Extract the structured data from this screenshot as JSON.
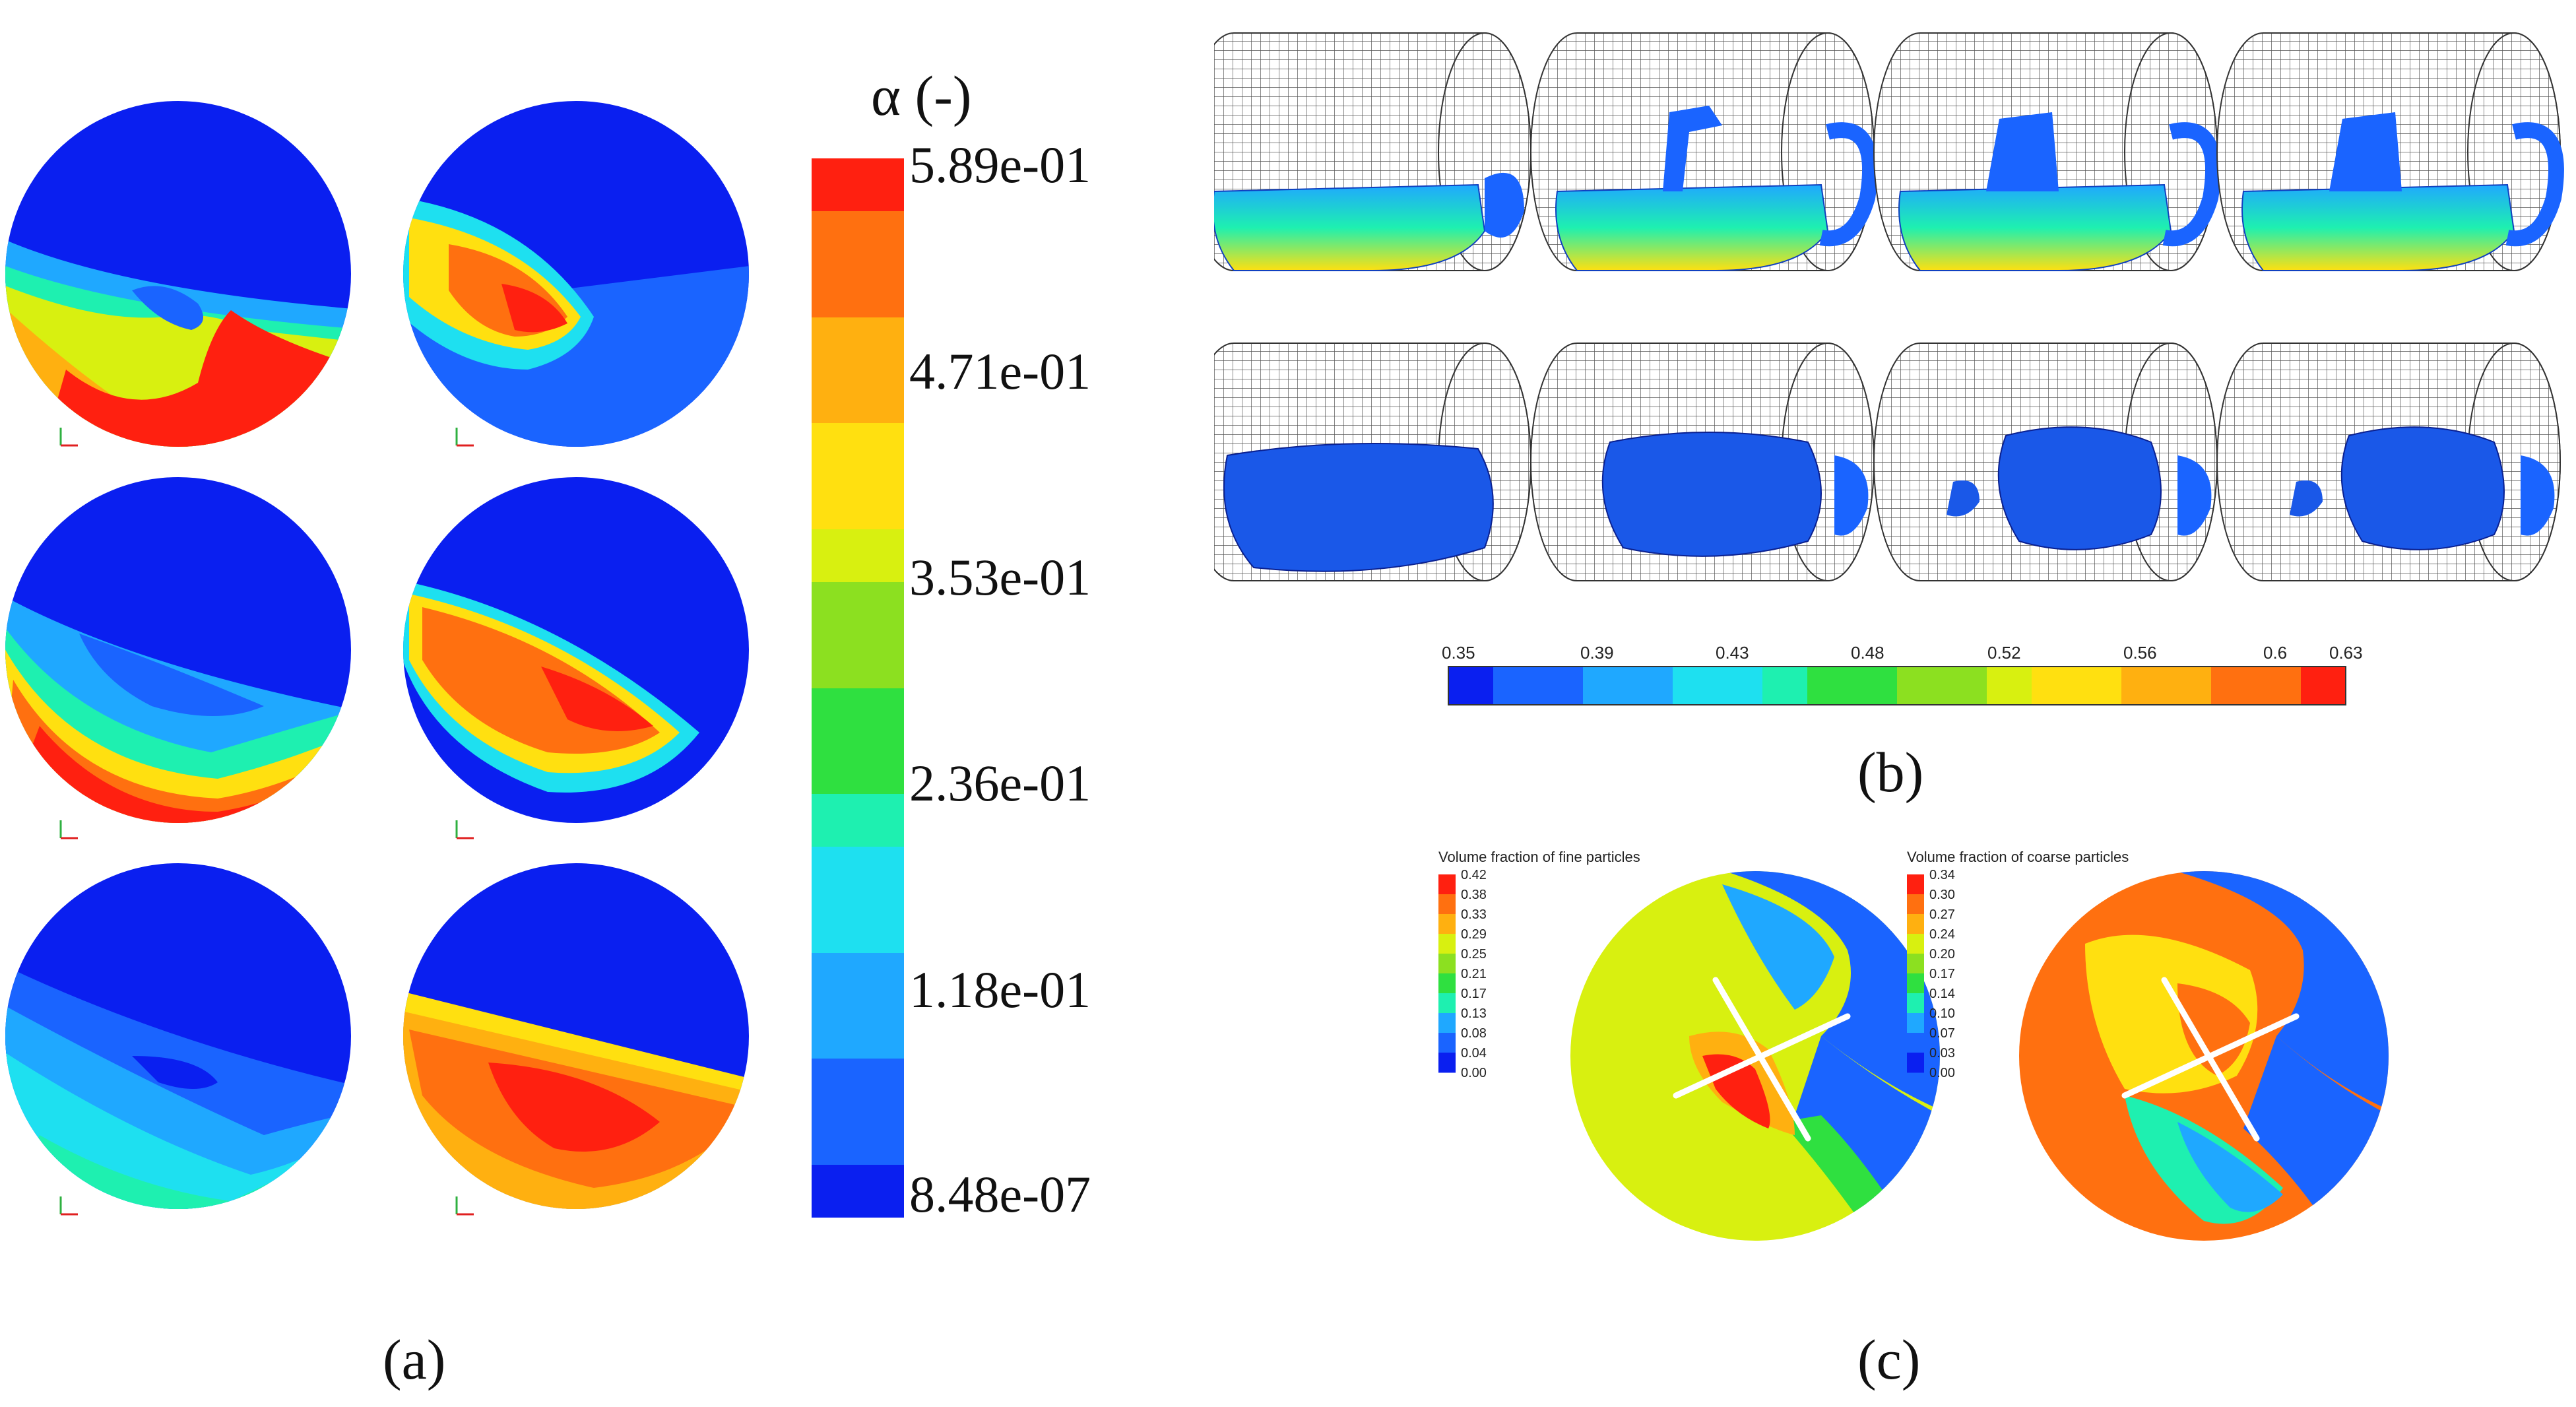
{
  "panel_a": {
    "colorbar_title": "α (-)",
    "colorbar_ticks": [
      "5.89e-01",
      "4.71e-01",
      "3.53e-01",
      "2.36e-01",
      "1.18e-01",
      "8.48e-07"
    ],
    "caption": "(a)"
  },
  "panel_b": {
    "colorbar_ticks": [
      "0.35",
      "0.39",
      "0.43",
      "0.48",
      "0.52",
      "0.56",
      "0.6",
      "0.63"
    ],
    "caption": "(b)"
  },
  "panel_c": {
    "left_title": "Volume fraction of fine particles",
    "left_ticks": [
      "0.42",
      "0.38",
      "0.33",
      "0.29",
      "0.25",
      "0.21",
      "0.17",
      "0.13",
      "0.08",
      "0.04",
      "0.00"
    ],
    "right_title": "Volume fraction of coarse particles",
    "right_ticks": [
      "0.34",
      "0.30",
      "0.27",
      "0.24",
      "0.20",
      "0.17",
      "0.14",
      "0.10",
      "0.07",
      "0.03",
      "0.00"
    ],
    "caption": "(c)"
  },
  "colors": {
    "jet": [
      "#0a1ff0",
      "#1a64ff",
      "#1fa8ff",
      "#1ee0f0",
      "#1ef0b0",
      "#2fe040",
      "#8ce020",
      "#d8f010",
      "#ffe010",
      "#ffb010",
      "#ff7010",
      "#ff2010"
    ]
  }
}
